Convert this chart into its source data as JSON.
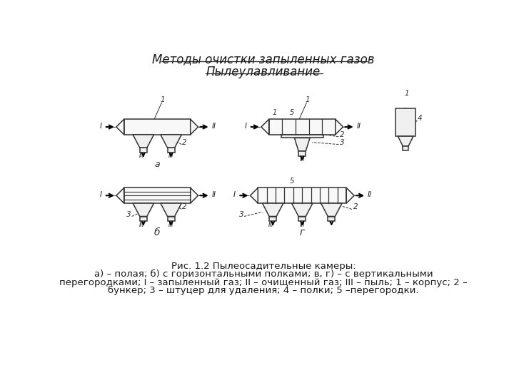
{
  "title1": "Методы очистки запыленных газов",
  "title2": "Пылеулавливание",
  "caption_line1": "Рис. 1.2 Пылеосадительные камеры:",
  "caption_line2": "а) – полая; б) с горизонтальными полками; в, г) – с вертикальными",
  "caption_line3": "перегородками; I – запыленный газ; II – очищенный газ; III – пыль; 1 – корпус; 2 –",
  "caption_line4": "бункер; 3 – штуцер для удаления; 4 – полки; 5 –перегородки.",
  "bg_color": "#ffffff",
  "text_color": "#1a1a1a",
  "title_fontsize": 12,
  "subtitle_fontsize": 12,
  "caption_fontsize": 9.5
}
